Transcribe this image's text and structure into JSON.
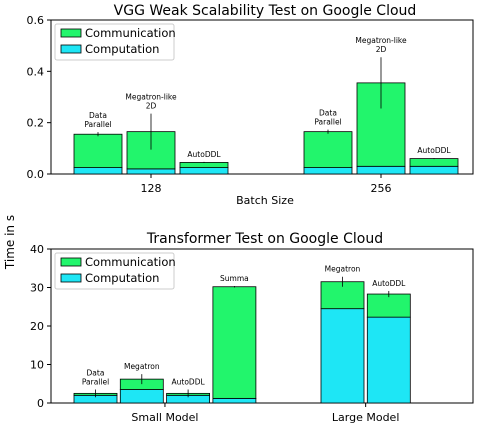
{
  "figure": {
    "shared_ylabel": "Time in s",
    "colors": {
      "communication": "#22f56c",
      "computation": "#1ee6f5",
      "edge": "#000000"
    }
  },
  "chart_data": [
    {
      "type": "bar",
      "stacked": true,
      "title": "VGG Weak Scalability Test on Google Cloud",
      "xlabel": "Batch Size",
      "ylabel": "",
      "ylim": [
        0,
        0.6
      ],
      "yticks": [
        "0.0",
        "0.2",
        "0.4",
        "0.6"
      ],
      "groups": [
        "128",
        "256"
      ],
      "legend": {
        "placement": "top-left",
        "entries": [
          "Communication",
          "Computation"
        ]
      },
      "bars": [
        {
          "group": "128",
          "label": [
            "Data",
            "Parallel"
          ],
          "computation": 0.025,
          "communication": 0.13,
          "err": 0.008
        },
        {
          "group": "128",
          "label": [
            "Megatron-like",
            "2D"
          ],
          "computation": 0.02,
          "communication": 0.145,
          "err": 0.07
        },
        {
          "group": "128",
          "label": [
            "AutoDDL"
          ],
          "computation": 0.025,
          "communication": 0.02,
          "err": 0.002
        },
        {
          "group": "256",
          "label": [
            "Data",
            "Parallel"
          ],
          "computation": 0.025,
          "communication": 0.14,
          "err": 0.008
        },
        {
          "group": "256",
          "label": [
            "Megatron-like",
            "2D"
          ],
          "computation": 0.03,
          "communication": 0.325,
          "err": 0.1
        },
        {
          "group": "256",
          "label": [
            "AutoDDL"
          ],
          "computation": 0.03,
          "communication": 0.03,
          "err": 0.002
        }
      ]
    },
    {
      "type": "bar",
      "stacked": true,
      "title": "Transformer Test on Google Cloud",
      "xlabel": "",
      "ylabel": "",
      "ylim": [
        0,
        40
      ],
      "yticks": [
        "0",
        "10",
        "20",
        "30",
        "40"
      ],
      "groups": [
        "Small Model",
        "Large Model"
      ],
      "legend": {
        "placement": "top-left",
        "entries": [
          "Communication",
          "Computation"
        ]
      },
      "bars": [
        {
          "group": "Small Model",
          "label": [
            "Data",
            "Parallel"
          ],
          "computation": 2.0,
          "communication": 0.5,
          "err": 1.0
        },
        {
          "group": "Small Model",
          "label": [
            "Megatron"
          ],
          "computation": 3.5,
          "communication": 2.7,
          "err": 1.3
        },
        {
          "group": "Small Model",
          "label": [
            "AutoDDL"
          ],
          "computation": 2.0,
          "communication": 0.5,
          "err": 1.0
        },
        {
          "group": "Small Model",
          "label": [
            "Summa"
          ],
          "computation": 1.2,
          "communication": 29.0,
          "err": 0.2
        },
        {
          "group": "Large Model",
          "label": [
            "Megatron"
          ],
          "computation": 24.5,
          "communication": 7.0,
          "err": 1.3
        },
        {
          "group": "Large Model",
          "label": [
            "AutoDDL"
          ],
          "computation": 22.3,
          "communication": 6.0,
          "err": 0.8
        }
      ]
    }
  ]
}
